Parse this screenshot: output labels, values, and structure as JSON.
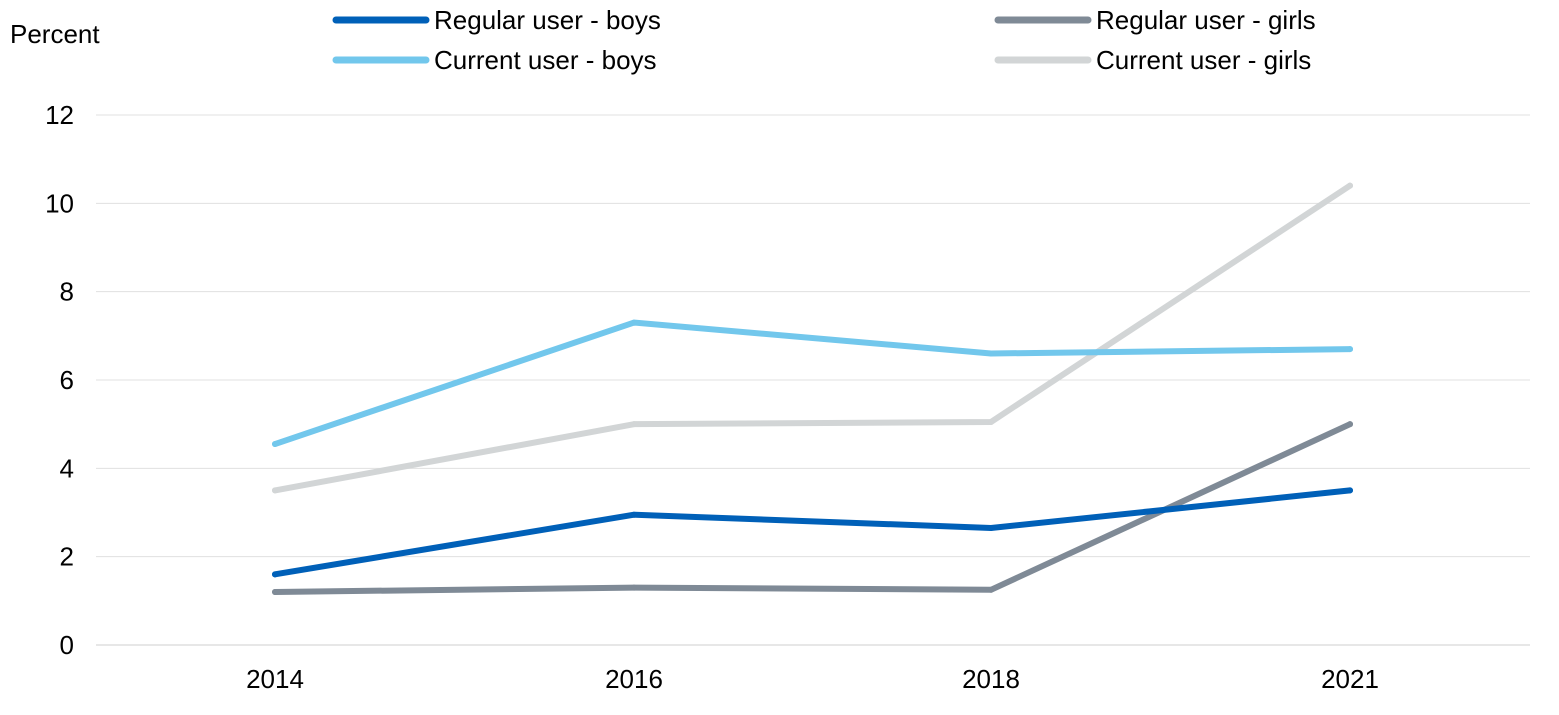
{
  "chart_data": {
    "type": "line",
    "title": "",
    "xlabel": "",
    "ylabel": "Percent",
    "ylim": [
      0,
      12
    ],
    "yticks": [
      0,
      2,
      4,
      6,
      8,
      10,
      12
    ],
    "categories": [
      "2014",
      "2016",
      "2018",
      "2021"
    ],
    "grid": "horizontal",
    "legend_position": "top",
    "series": [
      {
        "name": "Regular user - boys",
        "color": "#0060b8",
        "values": [
          1.6,
          2.95,
          2.65,
          3.5
        ]
      },
      {
        "name": "Current user - boys",
        "color": "#72c7ec",
        "values": [
          4.55,
          7.3,
          6.6,
          6.7
        ]
      },
      {
        "name": "Regular user - girls",
        "color": "#7f8a96",
        "values": [
          1.2,
          1.3,
          1.25,
          5.0
        ]
      },
      {
        "name": "Current user - girls",
        "color": "#d2d5d6",
        "values": [
          3.5,
          5.0,
          5.05,
          10.4
        ]
      }
    ]
  }
}
